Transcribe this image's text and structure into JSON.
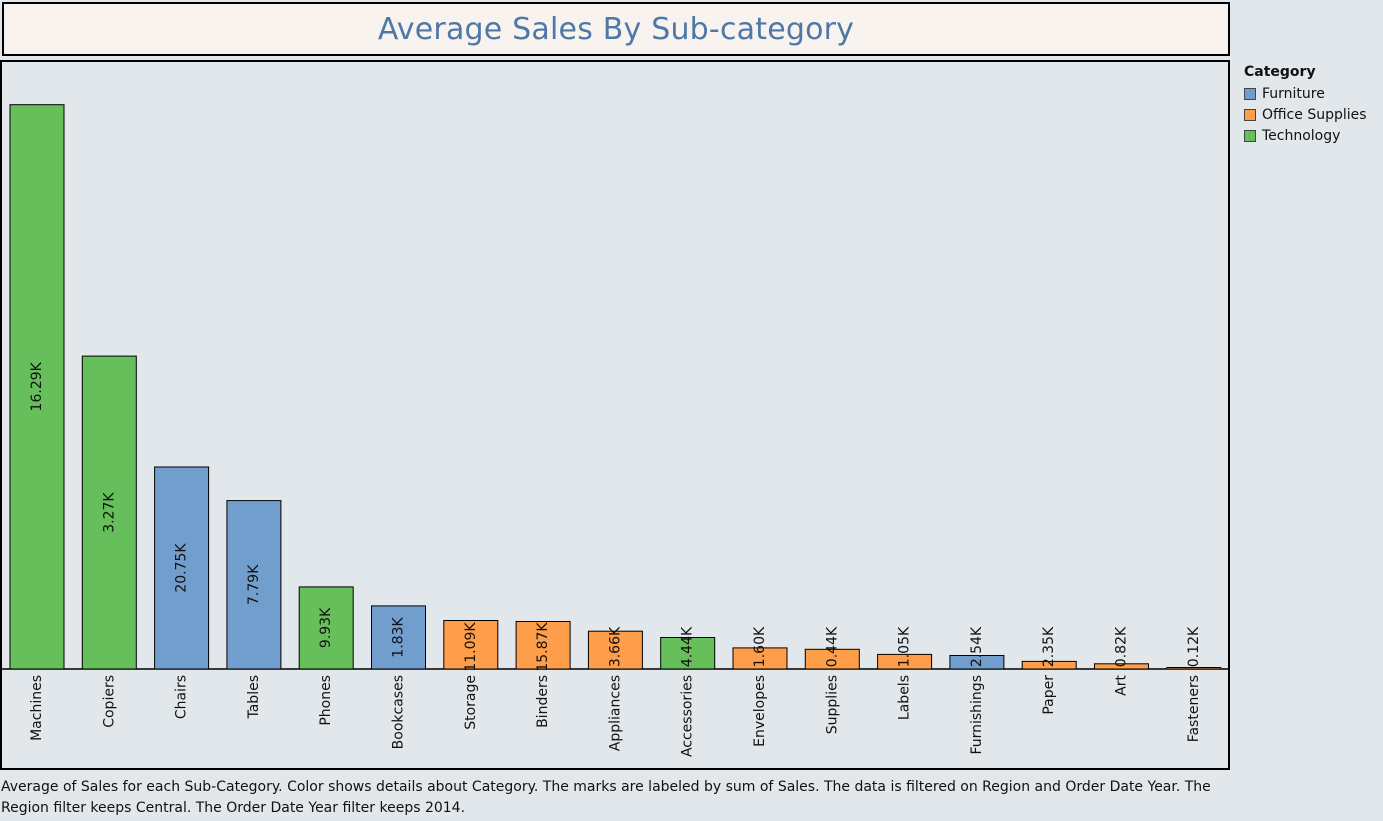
{
  "title": "Average Sales By Sub-category",
  "legend": {
    "title": "Category",
    "items": [
      {
        "label": "Furniture",
        "color": "#729ece"
      },
      {
        "label": "Office Supplies",
        "color": "#ff9e4a"
      },
      {
        "label": "Technology",
        "color": "#67bf5c"
      }
    ]
  },
  "caption": "Average of Sales for each Sub-Category.  Color shows details about Category.  The marks are labeled by sum of Sales. The data is filtered on Region and Order Date Year. The Region filter keeps Central. The Order Date Year filter keeps 2014.",
  "chart_data": {
    "type": "bar",
    "title": "Average Sales By Sub-category",
    "xlabel": "",
    "ylabel": "",
    "grid": false,
    "legend_position": "top-right",
    "categories": [
      "Machines",
      "Copiers",
      "Chairs",
      "Tables",
      "Phones",
      "Bookcases",
      "Storage",
      "Binders",
      "Appliances",
      "Accessories",
      "Envelopes",
      "Supplies",
      "Labels",
      "Furnishings",
      "Paper",
      "Art",
      "Fasteners"
    ],
    "category_group": [
      "Technology",
      "Technology",
      "Furniture",
      "Furniture",
      "Technology",
      "Furniture",
      "Office Supplies",
      "Office Supplies",
      "Office Supplies",
      "Technology",
      "Office Supplies",
      "Office Supplies",
      "Office Supplies",
      "Furniture",
      "Office Supplies",
      "Office Supplies",
      "Office Supplies"
    ],
    "values": [
      1628.8,
      903.0,
      583.0,
      486.0,
      237.0,
      182.0,
      140.0,
      137.0,
      109.0,
      91.0,
      61.0,
      57.0,
      42.0,
      39.0,
      22.0,
      15.0,
      4.0
    ],
    "labels": [
      "16.29K",
      "3.27K",
      "20.75K",
      "7.79K",
      "9.93K",
      "1.83K",
      "11.09K",
      "15.87K",
      "3.66K",
      "4.44K",
      "1.60K",
      "0.44K",
      "1.05K",
      "2.54K",
      "2.35K",
      "0.82K",
      "0.12K"
    ],
    "ylim": [
      0,
      1700
    ]
  }
}
